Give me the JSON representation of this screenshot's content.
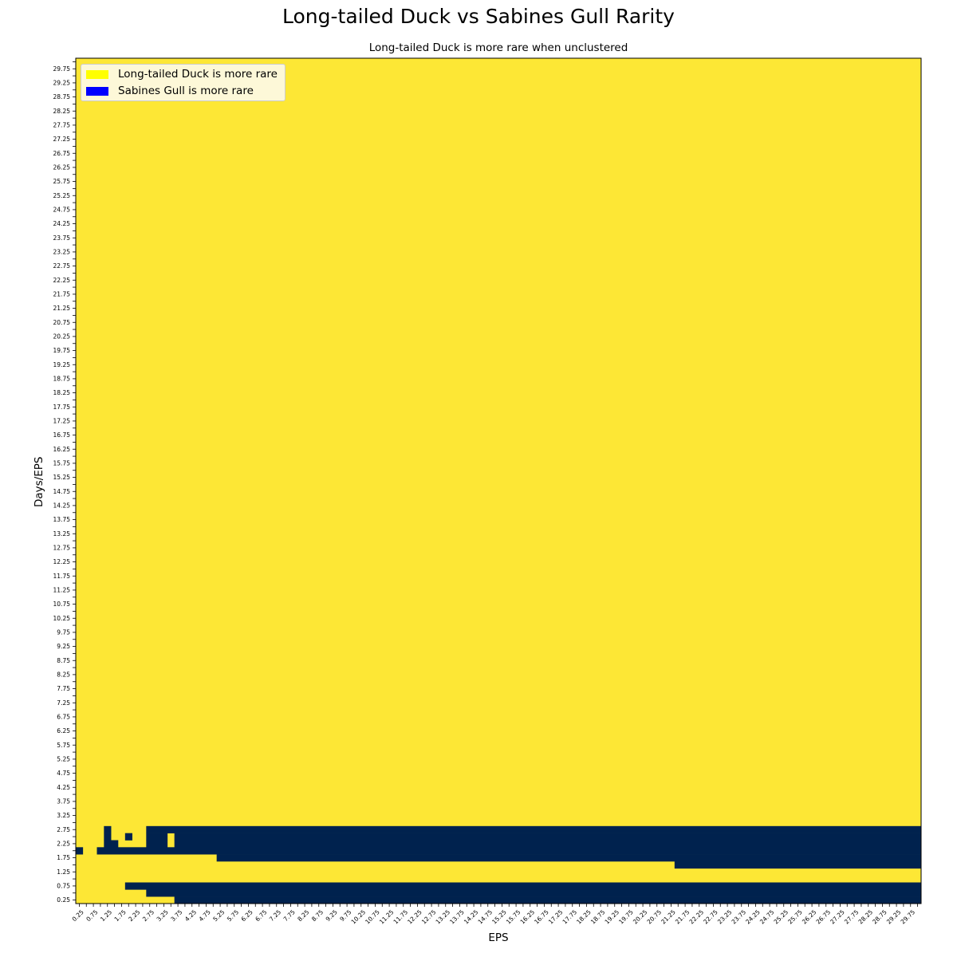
{
  "chart_data": {
    "type": "heatmap",
    "title": "Long-tailed Duck vs Sabines Gull Rarity",
    "subtitle": "Long-tailed Duck is more rare when unclustered",
    "xlabel": "EPS",
    "ylabel": "Days/EPS",
    "x_start": 0.25,
    "x_step": 0.25,
    "x_count": 120,
    "y_start": 0.25,
    "y_step": 0.25,
    "y_count": 120,
    "tick_every": 2,
    "grid": false,
    "legend_position": "top-left",
    "legend": [
      {
        "label": "Long-tailed Duck is more rare",
        "color": "#ffff00"
      },
      {
        "label": "Sabines Gull is more rare",
        "color": "#0000ff"
      }
    ],
    "cell_colors": {
      "long_tailed_duck_more_rare": "#fde735",
      "sabines_gull_more_rare": "#00224e"
    },
    "default_value": "long_tailed_duck_more_rare",
    "sabines_gull_more_rare_cells": [
      {
        "days_eps": 0.25,
        "eps_from": 3.75,
        "eps_to": 30.0
      },
      {
        "days_eps": 0.5,
        "eps_from": 2.75,
        "eps_to": 30.0
      },
      {
        "days_eps": 0.75,
        "eps_from": 2.0,
        "eps_to": 30.0
      },
      {
        "days_eps": 1.5,
        "eps_from": 21.5,
        "eps_to": 30.0
      },
      {
        "days_eps": 1.75,
        "eps_from": 5.25,
        "eps_to": 30.0
      },
      {
        "days_eps": 2.0,
        "eps_from": 0.25,
        "eps_to": 0.25
      },
      {
        "days_eps": 2.0,
        "eps_from": 1.0,
        "eps_to": 30.0
      },
      {
        "days_eps": 2.25,
        "eps_from": 1.25,
        "eps_to": 1.5
      },
      {
        "days_eps": 2.25,
        "eps_from": 2.75,
        "eps_to": 3.25
      },
      {
        "days_eps": 2.25,
        "eps_from": 3.75,
        "eps_to": 30.0
      },
      {
        "days_eps": 2.5,
        "eps_from": 1.25,
        "eps_to": 1.25
      },
      {
        "days_eps": 2.5,
        "eps_from": 2.0,
        "eps_to": 2.0
      },
      {
        "days_eps": 2.5,
        "eps_from": 2.75,
        "eps_to": 3.25
      },
      {
        "days_eps": 2.5,
        "eps_from": 3.75,
        "eps_to": 30.0
      },
      {
        "days_eps": 2.75,
        "eps_from": 1.25,
        "eps_to": 1.25
      },
      {
        "days_eps": 2.75,
        "eps_from": 2.75,
        "eps_to": 30.0
      }
    ]
  }
}
